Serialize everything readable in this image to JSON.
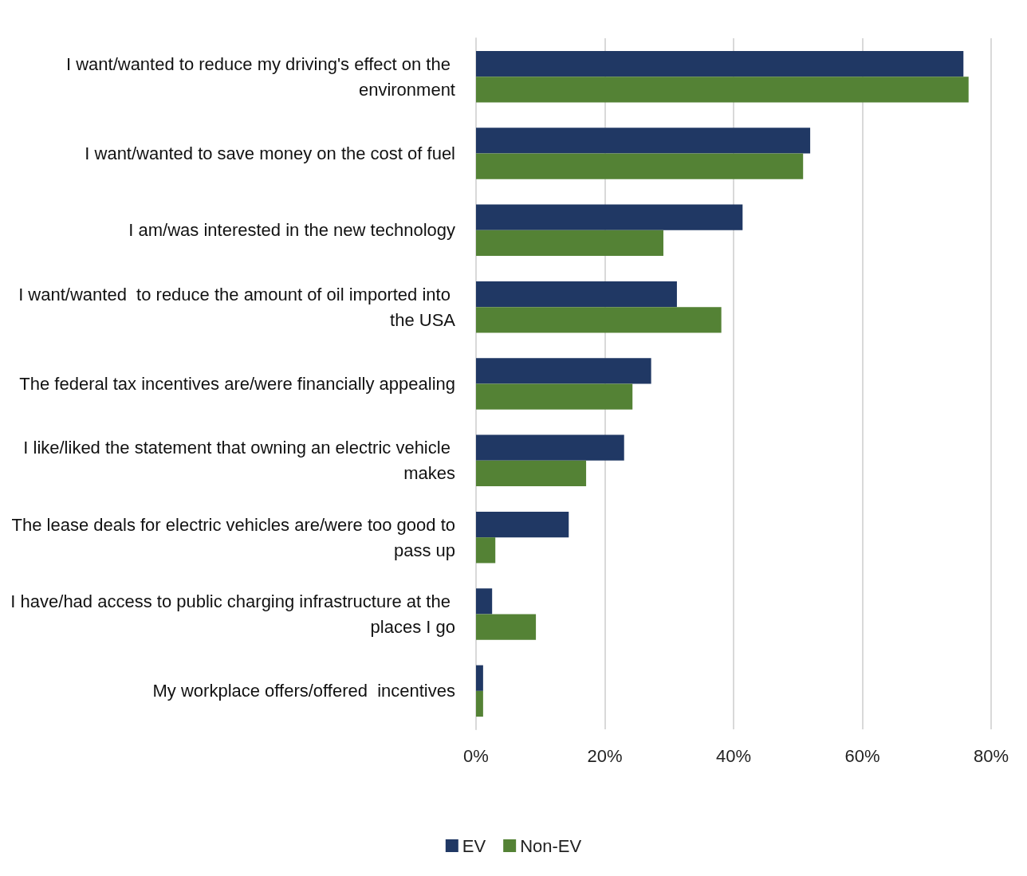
{
  "chart_data": {
    "type": "bar",
    "orientation": "horizontal",
    "categories": [
      "I want/wanted to reduce my driving's effect on the environment",
      "I want/wanted to save money on the cost of fuel",
      "I am/was interested in the new technology",
      "I want/wanted  to reduce the amount of oil imported into the USA",
      "The federal tax incentives are/were financially appealing",
      "I like/liked the statement that owning an electric vehicle makes",
      "The lease deals for electric vehicles are/were too good to pass up",
      "I have/had access to public charging infrastructure at the places I go",
      "My workplace offers/offered  incentives"
    ],
    "series": [
      {
        "name": "EV",
        "color": "#203864",
        "values": [
          75.7,
          51.9,
          41.4,
          31.2,
          27.2,
          23.0,
          14.4,
          2.5,
          1.1
        ]
      },
      {
        "name": "Non-EV",
        "color": "#548235",
        "values": [
          76.5,
          50.8,
          29.1,
          38.1,
          24.3,
          17.1,
          3.0,
          9.3,
          1.1
        ]
      }
    ],
    "xlim": [
      0,
      80
    ],
    "xticks": [
      {
        "value": 0,
        "label": "0%"
      },
      {
        "value": 20,
        "label": "20%"
      },
      {
        "value": 40,
        "label": "40%"
      },
      {
        "value": 60,
        "label": "60%"
      },
      {
        "value": 80,
        "label": "80%"
      }
    ],
    "grid": "x",
    "legend": "bottom"
  }
}
